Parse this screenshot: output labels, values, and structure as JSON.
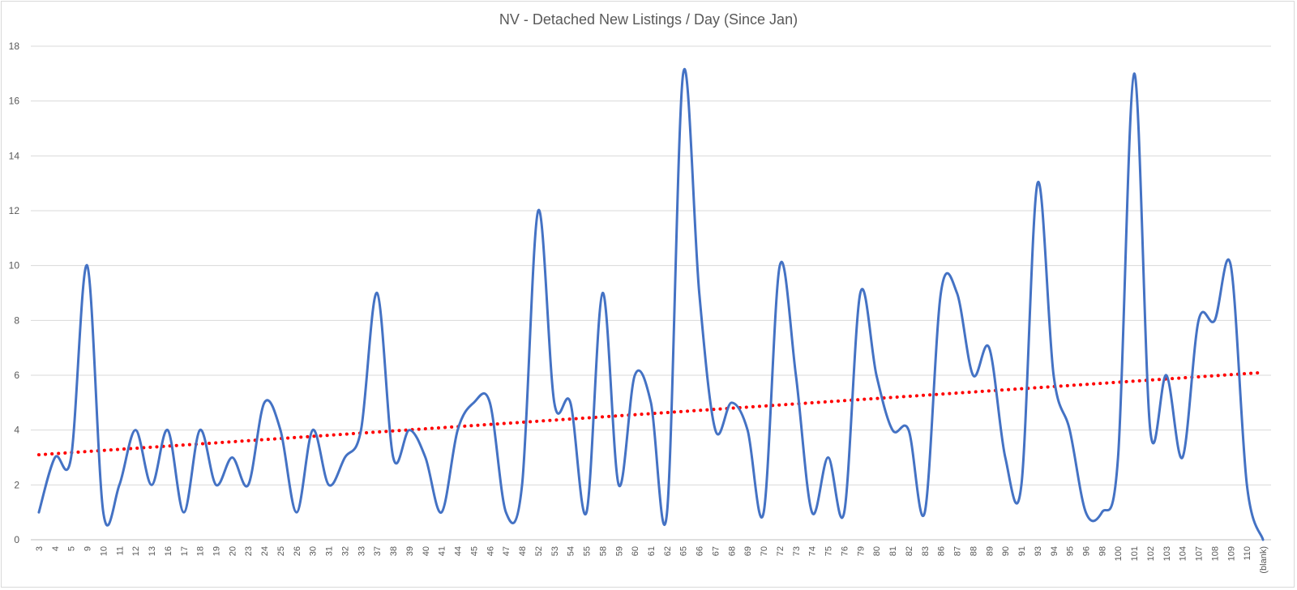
{
  "chart_data": {
    "type": "line",
    "title": "NV - Detached New Listings / Day (Since Jan)",
    "xlabel": "",
    "ylabel": "",
    "ylim": [
      0,
      18
    ],
    "yticks": [
      0,
      2,
      4,
      6,
      8,
      10,
      12,
      14,
      16,
      18
    ],
    "grid": true,
    "smoothed": true,
    "categories": [
      "3",
      "4",
      "5",
      "9",
      "10",
      "11",
      "12",
      "13",
      "16",
      "17",
      "18",
      "19",
      "20",
      "23",
      "24",
      "25",
      "26",
      "30",
      "31",
      "32",
      "33",
      "37",
      "38",
      "39",
      "40",
      "41",
      "44",
      "45",
      "46",
      "47",
      "48",
      "52",
      "53",
      "54",
      "55",
      "58",
      "59",
      "60",
      "61",
      "62",
      "65",
      "66",
      "67",
      "68",
      "69",
      "70",
      "72",
      "73",
      "74",
      "75",
      "76",
      "79",
      "80",
      "81",
      "82",
      "83",
      "86",
      "87",
      "88",
      "89",
      "90",
      "91",
      "93",
      "94",
      "95",
      "96",
      "98",
      "100",
      "101",
      "102",
      "103",
      "104",
      "107",
      "108",
      "109",
      "110",
      "(blank)"
    ],
    "series": [
      {
        "color": "#4472C4",
        "values": [
          1,
          3,
          3,
          10,
          1,
          2,
          4,
          2,
          4,
          1,
          4,
          2,
          3,
          2,
          5,
          4,
          1,
          4,
          2,
          3,
          4,
          9,
          3,
          4,
          3,
          1,
          4,
          5,
          5,
          1,
          2,
          12,
          5,
          5,
          1,
          9,
          2,
          6,
          5,
          1,
          17,
          9,
          4,
          5,
          4,
          1,
          10,
          6,
          1,
          3,
          1,
          9,
          6,
          4,
          4,
          1,
          9,
          9,
          6,
          7,
          3,
          2,
          13,
          6,
          4,
          1,
          1,
          3,
          17,
          4,
          6,
          3,
          8,
          8,
          10,
          2,
          0
        ]
      }
    ],
    "trendline": {
      "type": "linear",
      "style": "dotted",
      "color": "#FF0000",
      "start": 3.1,
      "end": 6.1
    }
  }
}
